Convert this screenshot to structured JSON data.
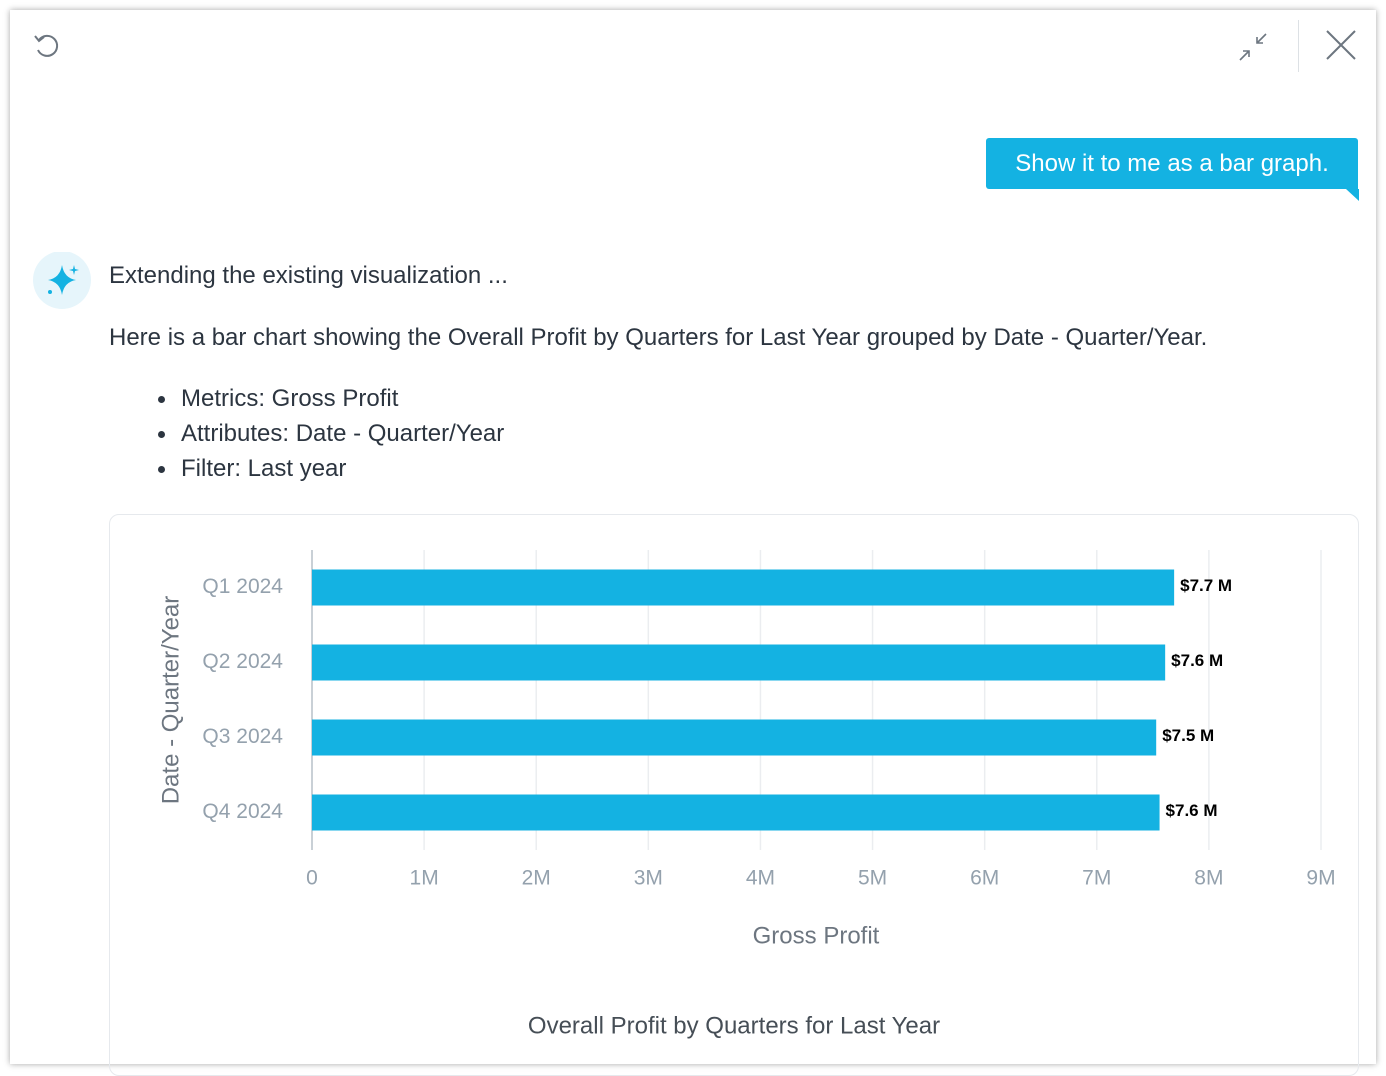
{
  "user_message": "Show it to me as a bar graph.",
  "assistant": {
    "intro": "Extending the existing visualization ...",
    "description": "Here is a bar chart showing the Overall Profit by Quarters for Last Year grouped by Date - Quarter/Year.",
    "bullets": [
      "Metrics: Gross Profit",
      "Attributes: Date - Quarter/Year",
      "Filter: Last year"
    ]
  },
  "chart_data": {
    "type": "bar",
    "orientation": "horizontal",
    "title": "Overall Profit by Quarters for Last Year",
    "x_label": "Gross Profit",
    "y_label": "Date - Quarter/Year",
    "categories": [
      "Q1 2024",
      "Q2 2024",
      "Q3 2024",
      "Q4 2024"
    ],
    "values": [
      7690000,
      7610000,
      7530000,
      7560000
    ],
    "value_labels": [
      "$7.7 M",
      "$7.6 M",
      "$7.5 M",
      "$7.6 M"
    ],
    "color": "#14b2e2",
    "xlim": [
      0,
      9000000
    ],
    "xticks": [
      0,
      {
        "value": 1000000,
        "label": "1M"
      },
      {
        "value": 2000000,
        "label": "2M"
      },
      {
        "value": 3000000,
        "label": "3M"
      },
      {
        "value": 4000000,
        "label": "4M"
      },
      {
        "value": 5000000,
        "label": "5M"
      },
      {
        "value": 6000000,
        "label": "6M"
      },
      {
        "value": 7000000,
        "label": "7M"
      },
      {
        "value": 8000000,
        "label": "8M"
      },
      {
        "value": 9000000,
        "label": "9M"
      }
    ],
    "grid": true
  }
}
